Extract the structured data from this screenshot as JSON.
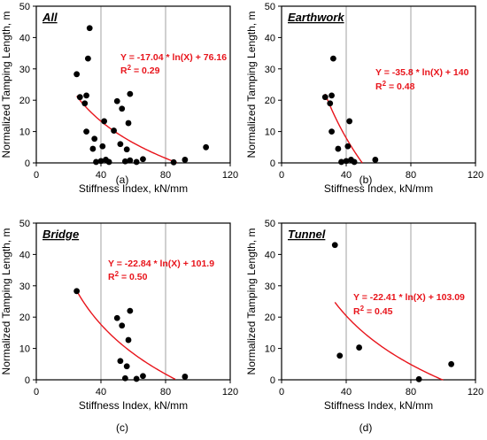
{
  "chart_data": [
    {
      "type": "scatter",
      "panel_title": "All",
      "caption": "(a)",
      "xlabel": "Stiffness Index, kN/mm",
      "ylabel": "Normalized Tamping Length, m",
      "xlim": [
        0,
        120
      ],
      "ylim": [
        0,
        50
      ],
      "xticks": [
        "0",
        "40",
        "80",
        "120"
      ],
      "yticks": [
        "0",
        "10",
        "20",
        "30",
        "40",
        "50"
      ],
      "grid": "vertical",
      "points": [
        {
          "x": 25,
          "y": 28.3
        },
        {
          "x": 27,
          "y": 21
        },
        {
          "x": 30,
          "y": 19
        },
        {
          "x": 31,
          "y": 10
        },
        {
          "x": 31,
          "y": 21.5
        },
        {
          "x": 32,
          "y": 33.3
        },
        {
          "x": 33,
          "y": 43
        },
        {
          "x": 35,
          "y": 4.5
        },
        {
          "x": 36,
          "y": 7.7
        },
        {
          "x": 37,
          "y": 0.3
        },
        {
          "x": 40,
          "y": 0.6
        },
        {
          "x": 41,
          "y": 5.3
        },
        {
          "x": 42,
          "y": 13.3
        },
        {
          "x": 43,
          "y": 1
        },
        {
          "x": 45,
          "y": 0.3
        },
        {
          "x": 48,
          "y": 10.3
        },
        {
          "x": 50,
          "y": 19.7
        },
        {
          "x": 52,
          "y": 6
        },
        {
          "x": 53,
          "y": 17.3
        },
        {
          "x": 55,
          "y": 0.5
        },
        {
          "x": 56,
          "y": 4.3
        },
        {
          "x": 57,
          "y": 12.7
        },
        {
          "x": 58,
          "y": 22
        },
        {
          "x": 58,
          "y": 0.8
        },
        {
          "x": 62,
          "y": 0.3
        },
        {
          "x": 66,
          "y": 1.2
        },
        {
          "x": 85,
          "y": 0.2
        },
        {
          "x": 92,
          "y": 1
        },
        {
          "x": 105,
          "y": 5
        }
      ],
      "fit": {
        "a": -17.04,
        "b": 76.16,
        "x_from": 25,
        "x_to": 87
      },
      "equation": "Y = -17.04 * ln(X) + 76.16",
      "r2_label": "R",
      "r2_sup": "2",
      "r2_value": " = 0.29"
    },
    {
      "type": "scatter",
      "panel_title": "Earthwork",
      "caption": "(b)",
      "xlabel": "Stiffness Index, kN/mm",
      "ylabel": "Normalized Tamping Length, m",
      "xlim": [
        0,
        120
      ],
      "ylim": [
        0,
        50
      ],
      "xticks": [
        "0",
        "40",
        "80",
        "120"
      ],
      "yticks": [
        "0",
        "10",
        "20",
        "30",
        "40",
        "50"
      ],
      "grid": "vertical",
      "points": [
        {
          "x": 27,
          "y": 21
        },
        {
          "x": 30,
          "y": 19
        },
        {
          "x": 31,
          "y": 10
        },
        {
          "x": 31,
          "y": 21.5
        },
        {
          "x": 32,
          "y": 33.3
        },
        {
          "x": 35,
          "y": 4.5
        },
        {
          "x": 37,
          "y": 0.3
        },
        {
          "x": 40,
          "y": 0.6
        },
        {
          "x": 41,
          "y": 5.3
        },
        {
          "x": 42,
          "y": 13.3
        },
        {
          "x": 43,
          "y": 1
        },
        {
          "x": 45,
          "y": 0.3
        },
        {
          "x": 58,
          "y": 1
        }
      ],
      "fit": {
        "a": -35.8,
        "b": 140,
        "x_from": 27,
        "x_to": 50
      },
      "equation": "Y = -35.8 * ln(X) + 140",
      "r2_label": "R",
      "r2_sup": "2",
      "r2_value": " = 0.48"
    },
    {
      "type": "scatter",
      "panel_title": "Bridge",
      "caption": "(c)",
      "xlabel": "Stiffness Index, kN/mm",
      "ylabel": "Normalized Tamping Length, m",
      "xlim": [
        0,
        120
      ],
      "ylim": [
        0,
        50
      ],
      "xticks": [
        "0",
        "40",
        "80",
        "120"
      ],
      "yticks": [
        "0",
        "10",
        "20",
        "30",
        "40",
        "50"
      ],
      "grid": "vertical",
      "points": [
        {
          "x": 25,
          "y": 28.3
        },
        {
          "x": 50,
          "y": 19.7
        },
        {
          "x": 52,
          "y": 6
        },
        {
          "x": 53,
          "y": 17.3
        },
        {
          "x": 55,
          "y": 0.5
        },
        {
          "x": 56,
          "y": 4.3
        },
        {
          "x": 57,
          "y": 12.7
        },
        {
          "x": 58,
          "y": 22
        },
        {
          "x": 62,
          "y": 0.3
        },
        {
          "x": 66,
          "y": 1.2
        },
        {
          "x": 92,
          "y": 1
        }
      ],
      "fit": {
        "a": -22.84,
        "b": 101.9,
        "x_from": 25,
        "x_to": 86
      },
      "equation": "Y = -22.84 * ln(X) + 101.9",
      "r2_label": "R",
      "r2_sup": "2",
      "r2_value": " = 0.50"
    },
    {
      "type": "scatter",
      "panel_title": "Tunnel",
      "caption": "(d)",
      "xlabel": "Stiffness Index, kN/mm",
      "ylabel": "Normalized Tamping Length, m",
      "xlim": [
        0,
        120
      ],
      "ylim": [
        0,
        50
      ],
      "xticks": [
        "0",
        "40",
        "80",
        "120"
      ],
      "yticks": [
        "0",
        "10",
        "20",
        "30",
        "40",
        "50"
      ],
      "grid": "vertical",
      "points": [
        {
          "x": 33,
          "y": 43
        },
        {
          "x": 36,
          "y": 7.7
        },
        {
          "x": 48,
          "y": 10.3
        },
        {
          "x": 85,
          "y": 0.2
        },
        {
          "x": 105,
          "y": 5
        }
      ],
      "fit": {
        "a": -22.41,
        "b": 103.09,
        "x_from": 33,
        "x_to": 100
      },
      "equation": "Y = -22.41 * ln(X) + 103.09",
      "r2_label": "R",
      "r2_sup": "2",
      "r2_value": " = 0.45"
    }
  ],
  "colors": {
    "fit_line": "#e8141b",
    "annotation": "#e8141b",
    "points": "#000000",
    "grid": "#a0a0a0",
    "frame": "#000000"
  }
}
